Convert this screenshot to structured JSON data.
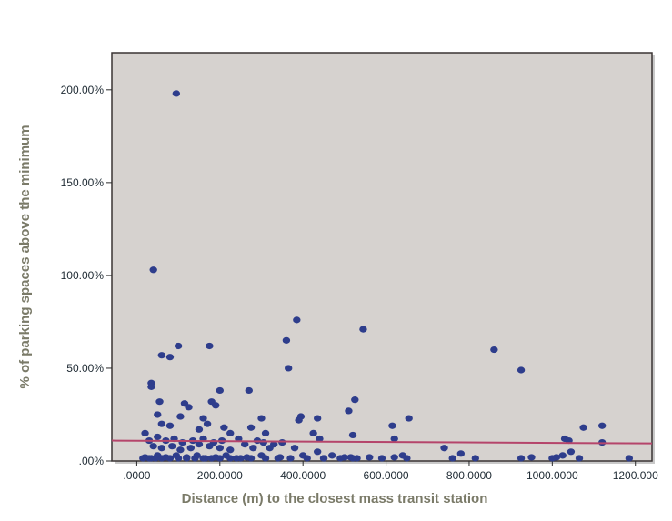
{
  "chart_data": {
    "type": "scatter",
    "title": "",
    "xlabel": "Distance (m) to the closest mass transit station",
    "ylabel": "% of parking spaces above the minimum",
    "xlim": [
      -60,
      1240
    ],
    "ylim": [
      0,
      220
    ],
    "x_ticks": [
      {
        "value": 0,
        "label": ".0000"
      },
      {
        "value": 200,
        "label": "200.0000"
      },
      {
        "value": 400,
        "label": "400.0000"
      },
      {
        "value": 600,
        "label": "600.0000"
      },
      {
        "value": 800,
        "label": "800.0000"
      },
      {
        "value": 1000,
        "label": "1000.0000"
      },
      {
        "value": 1200,
        "label": "1200.000"
      }
    ],
    "y_ticks": [
      {
        "value": 0,
        "label": ".00%"
      },
      {
        "value": 50,
        "label": "50.00%"
      },
      {
        "value": 100,
        "label": "100.00%"
      },
      {
        "value": 150,
        "label": "150.00%"
      },
      {
        "value": 200,
        "label": "200.00%"
      }
    ],
    "grid": false,
    "plot_background": "#d6d2cf",
    "point_color": "#2e3d8c",
    "fit_line_color": "#b5456b",
    "fit_line": {
      "x": [
        -60,
        1240
      ],
      "y": [
        11,
        9.5
      ]
    },
    "points": [
      [
        95,
        198
      ],
      [
        40,
        103
      ],
      [
        385,
        76
      ],
      [
        545,
        71
      ],
      [
        360,
        65
      ],
      [
        100,
        62
      ],
      [
        175,
        62
      ],
      [
        860,
        60
      ],
      [
        60,
        57
      ],
      [
        80,
        56
      ],
      [
        365,
        50
      ],
      [
        925,
        49
      ],
      [
        35,
        42
      ],
      [
        35,
        40
      ],
      [
        270,
        38
      ],
      [
        200,
        38
      ],
      [
        525,
        33
      ],
      [
        55,
        32
      ],
      [
        115,
        31
      ],
      [
        180,
        32
      ],
      [
        125,
        29
      ],
      [
        190,
        30
      ],
      [
        510,
        27
      ],
      [
        300,
        23
      ],
      [
        395,
        24
      ],
      [
        390,
        22
      ],
      [
        435,
        23
      ],
      [
        655,
        23
      ],
      [
        160,
        23
      ],
      [
        50,
        25
      ],
      [
        105,
        24
      ],
      [
        60,
        20
      ],
      [
        80,
        19
      ],
      [
        170,
        20
      ],
      [
        210,
        18
      ],
      [
        275,
        18
      ],
      [
        615,
        19
      ],
      [
        1075,
        18
      ],
      [
        1120,
        19
      ],
      [
        20,
        15
      ],
      [
        150,
        17
      ],
      [
        225,
        15
      ],
      [
        310,
        15
      ],
      [
        425,
        15
      ],
      [
        520,
        14
      ],
      [
        620,
        12
      ],
      [
        1030,
        12
      ],
      [
        1040,
        11
      ],
      [
        30,
        11
      ],
      [
        50,
        13
      ],
      [
        70,
        11
      ],
      [
        90,
        12
      ],
      [
        110,
        10
      ],
      [
        135,
        11
      ],
      [
        160,
        12
      ],
      [
        185,
        10
      ],
      [
        205,
        11
      ],
      [
        245,
        12
      ],
      [
        290,
        11
      ],
      [
        330,
        9
      ],
      [
        350,
        10
      ],
      [
        440,
        12
      ],
      [
        40,
        8
      ],
      [
        60,
        7
      ],
      [
        85,
        8
      ],
      [
        105,
        6
      ],
      [
        130,
        7
      ],
      [
        150,
        9
      ],
      [
        175,
        8
      ],
      [
        200,
        7
      ],
      [
        225,
        6
      ],
      [
        260,
        9
      ],
      [
        280,
        7
      ],
      [
        305,
        10
      ],
      [
        320,
        7
      ],
      [
        380,
        7
      ],
      [
        435,
        5
      ],
      [
        470,
        3
      ],
      [
        515,
        2
      ],
      [
        560,
        2
      ],
      [
        620,
        2
      ],
      [
        640,
        3
      ],
      [
        740,
        7
      ],
      [
        780,
        4
      ],
      [
        1045,
        5
      ],
      [
        1120,
        10
      ],
      [
        20,
        2
      ],
      [
        35,
        1
      ],
      [
        50,
        3
      ],
      [
        70,
        2
      ],
      [
        95,
        3
      ],
      [
        120,
        2
      ],
      [
        145,
        3
      ],
      [
        165,
        1
      ],
      [
        190,
        2
      ],
      [
        215,
        3
      ],
      [
        240,
        1
      ],
      [
        265,
        2
      ],
      [
        300,
        3
      ],
      [
        345,
        2
      ],
      [
        400,
        3
      ],
      [
        450,
        1
      ],
      [
        500,
        2
      ],
      [
        530,
        1
      ],
      [
        950,
        2
      ],
      [
        1010,
        2
      ],
      [
        1025,
        3
      ],
      [
        1065,
        1
      ],
      [
        15,
        0
      ],
      [
        30,
        0
      ],
      [
        45,
        0
      ],
      [
        60,
        0
      ],
      [
        80,
        0
      ],
      [
        100,
        0
      ],
      [
        120,
        0
      ],
      [
        140,
        0
      ],
      [
        160,
        0
      ],
      [
        180,
        0
      ],
      [
        200,
        0
      ],
      [
        225,
        0
      ],
      [
        250,
        0
      ],
      [
        275,
        0
      ],
      [
        310,
        0
      ],
      [
        340,
        0
      ],
      [
        370,
        0
      ],
      [
        410,
        0
      ],
      [
        450,
        0
      ],
      [
        490,
        0
      ],
      [
        520,
        0
      ],
      [
        590,
        0
      ],
      [
        650,
        0
      ],
      [
        760,
        0
      ],
      [
        815,
        0
      ],
      [
        925,
        0
      ],
      [
        1000,
        0
      ],
      [
        1185,
        0
      ]
    ]
  }
}
